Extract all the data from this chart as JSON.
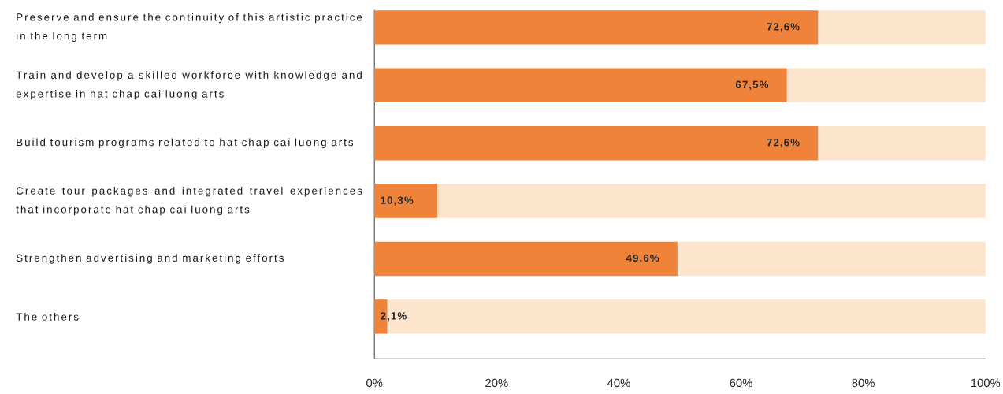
{
  "chart_data": {
    "type": "bar",
    "orientation": "horizontal",
    "stacked": true,
    "categories": [
      "Preserve and ensure the continuity of this artistic practice in the long term",
      "Train and develop a skilled workforce with knowledge and expertise in hat chap cai luong arts",
      "Build tourism programs related to hat chap cai luong arts",
      "Create tour packages and integrated travel experiences that incorporate hat chap cai luong arts",
      "Strengthen advertising and marketing efforts",
      "The others"
    ],
    "series": [
      {
        "color": "#f0833a",
        "values": [
          72.6,
          67.5,
          72.6,
          10.3,
          49.6,
          2.1
        ],
        "value_labels": [
          "72,6%",
          "67,5%",
          "72,6%",
          "10,3%",
          "49,6%",
          "2,1%"
        ]
      },
      {
        "color": "#fde5cd",
        "values": [
          27.4,
          32.5,
          27.4,
          89.7,
          50.4,
          97.9
        ]
      }
    ],
    "xlim": [
      0,
      100
    ],
    "xticks": [
      {
        "value": 0,
        "label": "0%"
      },
      {
        "value": 20,
        "label": "20%"
      },
      {
        "value": 40,
        "label": "40%"
      },
      {
        "value": 60,
        "label": "60%"
      },
      {
        "value": 80,
        "label": "80%"
      },
      {
        "value": 100,
        "label": "100%"
      }
    ]
  }
}
